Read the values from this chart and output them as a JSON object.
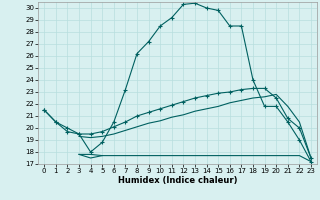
{
  "xlabel": "Humidex (Indice chaleur)",
  "bg_color": "#d8f0f0",
  "line_color": "#006060",
  "grid_color": "#b8dede",
  "xlim": [
    -0.5,
    23.5
  ],
  "ylim": [
    17,
    30.5
  ],
  "yticks": [
    17,
    18,
    19,
    20,
    21,
    22,
    23,
    24,
    25,
    26,
    27,
    28,
    29,
    30
  ],
  "xticks": [
    0,
    1,
    2,
    3,
    4,
    5,
    6,
    7,
    8,
    9,
    10,
    11,
    12,
    13,
    14,
    15,
    16,
    17,
    18,
    19,
    20,
    21,
    22,
    23
  ],
  "curve1_x": [
    0,
    1,
    2,
    3,
    4,
    5,
    6,
    7,
    8,
    9,
    10,
    11,
    12,
    13,
    14,
    15,
    16,
    17,
    18,
    19,
    20,
    21,
    22,
    23
  ],
  "curve1_y": [
    21.5,
    20.5,
    20.0,
    19.5,
    18.0,
    18.8,
    20.5,
    23.2,
    26.2,
    27.2,
    28.5,
    29.2,
    30.3,
    30.4,
    30.0,
    29.8,
    28.5,
    28.5,
    24.0,
    21.8,
    21.8,
    20.5,
    19.0,
    17.2
  ],
  "curve2_x": [
    0,
    1,
    2,
    3,
    4,
    5,
    6,
    7,
    8,
    9,
    10,
    11,
    12,
    13,
    14,
    15,
    16,
    17,
    18,
    19,
    20,
    21,
    22,
    23
  ],
  "curve2_y": [
    21.5,
    20.5,
    19.7,
    19.5,
    19.5,
    19.7,
    20.1,
    20.5,
    21.0,
    21.3,
    21.6,
    21.9,
    22.2,
    22.5,
    22.7,
    22.9,
    23.0,
    23.2,
    23.3,
    23.3,
    22.5,
    20.8,
    20.0,
    17.5
  ],
  "curve3_x": [
    3,
    4,
    5,
    6,
    7,
    8,
    9,
    10,
    11,
    12,
    13,
    14,
    15,
    16,
    17,
    18,
    19,
    20,
    21,
    22,
    23
  ],
  "curve3_y": [
    19.3,
    19.2,
    19.3,
    19.5,
    19.8,
    20.1,
    20.4,
    20.6,
    20.9,
    21.1,
    21.4,
    21.6,
    21.8,
    22.1,
    22.3,
    22.5,
    22.6,
    22.8,
    21.8,
    20.5,
    17.5
  ],
  "curve4_x": [
    3,
    4,
    5,
    6,
    7,
    8,
    9,
    10,
    11,
    12,
    13,
    14,
    15,
    16,
    17,
    18,
    19,
    20,
    21,
    22,
    23
  ],
  "curve4_y": [
    17.8,
    17.8,
    17.7,
    17.7,
    17.7,
    17.7,
    17.7,
    17.7,
    17.7,
    17.7,
    17.7,
    17.7,
    17.7,
    17.7,
    17.7,
    17.7,
    17.7,
    17.7,
    17.7,
    17.7,
    17.2
  ],
  "curve5_x": [
    3,
    4,
    5
  ],
  "curve5_y": [
    17.8,
    17.5,
    17.7
  ]
}
